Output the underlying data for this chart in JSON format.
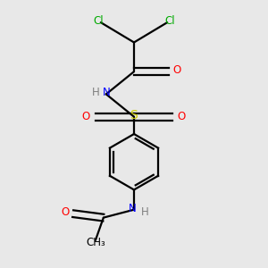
{
  "bg_color": "#e8e8e8",
  "atom_colors": {
    "C": "#000000",
    "H": "#808080",
    "N": "#0000ff",
    "O": "#ff0000",
    "S": "#cccc00",
    "Cl": "#00aa00"
  },
  "figsize": [
    3.0,
    3.0
  ],
  "dpi": 100,
  "lw": 1.6,
  "fs": 8.5
}
